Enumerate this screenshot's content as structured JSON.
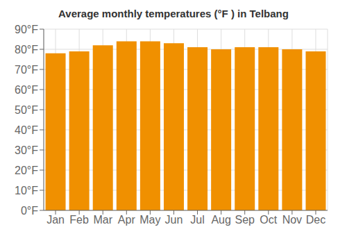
{
  "chart_data": {
    "type": "bar",
    "title": "Average monthly temperatures (°F ) in Telbang",
    "categories": [
      "Jan",
      "Feb",
      "Mar",
      "Apr",
      "May",
      "Jun",
      "Jul",
      "Aug",
      "Sep",
      "Oct",
      "Nov",
      "Dec"
    ],
    "values": [
      78,
      79,
      82,
      84,
      84,
      83,
      81,
      80,
      81,
      81,
      80,
      79
    ],
    "color": "#F09000",
    "ylim": [
      0,
      90
    ],
    "yticks": [
      {
        "value": 0,
        "label": "0°F"
      },
      {
        "value": 10,
        "label": "10°F"
      },
      {
        "value": 20,
        "label": "20°F"
      },
      {
        "value": 30,
        "label": "30°F"
      },
      {
        "value": 40,
        "label": "40°F"
      },
      {
        "value": 50,
        "label": "50°F"
      },
      {
        "value": 60,
        "label": "60°F"
      },
      {
        "value": 70,
        "label": "70°F"
      },
      {
        "value": 80,
        "label": "80°F"
      },
      {
        "value": 90,
        "label": "90°F"
      }
    ],
    "grid": true
  }
}
